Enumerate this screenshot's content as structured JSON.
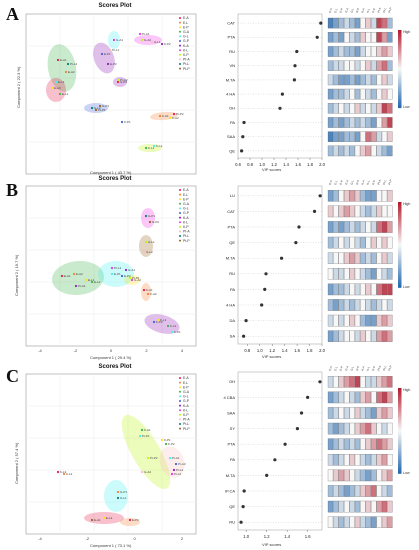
{
  "panels": [
    {
      "letter": "A",
      "scores": {
        "title": "Scores Plot",
        "xlabel": "Component 1 ( 43.7 %)",
        "ylabel": "Component 2 ( 22.3 %)",
        "legend": [
          "E-A",
          "E-L",
          "E-P",
          "G-A",
          "G-L",
          "G-P",
          "K-A",
          "K-L",
          "K-P",
          "Pt-A",
          "Pt-L",
          "Pt-P"
        ],
        "point_labels": [
          "E-A1",
          "E-A2",
          "E-A3",
          "E-L1",
          "E-L2",
          "E-P1",
          "E-P2",
          "G-A1",
          "G-A2",
          "G-L1",
          "G-L2",
          "G-P1",
          "G-P2",
          "K-A1",
          "K-A2",
          "K-L1",
          "K-L2",
          "K-P1",
          "K-P2",
          "Pt-A1",
          "Pt-A2",
          "Pt-L1",
          "Pt-L2",
          "Pt-P1",
          "Pt-P2"
        ]
      },
      "vip": {
        "xlabel": "VIP scores",
        "features": [
          "CAT",
          "PTA",
          "RU",
          "VN",
          "M.TA",
          "4 HA",
          "OH",
          "PA",
          "SAA",
          "QE"
        ],
        "values": [
          1.98,
          1.92,
          1.58,
          1.55,
          1.54,
          1.34,
          1.3,
          0.7,
          0.68,
          0.66
        ],
        "xticks": [
          "0.6",
          "0.8",
          "1.0",
          "1.2",
          "1.4",
          "1.6",
          "1.8",
          "2.0"
        ],
        "xlim": [
          0.6,
          2.0
        ]
      },
      "heatmap_columns": [
        "E-A",
        "E-L",
        "E-P",
        "G-A",
        "G-L",
        "G-P",
        "K-A",
        "K-L",
        "K-P",
        "Pt-A",
        "Pt-L",
        "Pt-P"
      ],
      "colorbar": {
        "high": "High",
        "low": "Low"
      }
    },
    {
      "letter": "B",
      "scores": {
        "title": "Scores Plot",
        "xlabel": "Component 1 ( 29.4 %)",
        "ylabel": "Component 2 ( 19.7 %)",
        "xticks": [
          "-4",
          "-2",
          "0",
          "2",
          "4"
        ],
        "legend": [
          "E-A",
          "E-L",
          "E-P",
          "G-A",
          "G-L",
          "G-P",
          "K-A",
          "K-L",
          "K-P",
          "Pt-A",
          "Pt-L",
          "Pt-P"
        ],
        "point_labels": [
          "E-A1",
          "E-A2",
          "E-L1",
          "E-L2",
          "E-P1",
          "E-P2",
          "G-A1",
          "G-A2",
          "G-L1",
          "G-L2",
          "G-P1",
          "G-P2",
          "K-A1",
          "K-A2",
          "K-L1",
          "K-L2",
          "K-P1",
          "K-P2",
          "Pt-A1",
          "Pt-L1",
          "Pt-P1"
        ]
      },
      "vip": {
        "xlabel": "VIP scores",
        "features": [
          "LU",
          "CAT",
          "PTA",
          "QE",
          "M.TA",
          "RU",
          "PA",
          "4 HA",
          "DA",
          "SA"
        ],
        "values": [
          1.97,
          1.88,
          1.63,
          1.58,
          1.35,
          1.1,
          1.08,
          1.03,
          0.78,
          0.74
        ],
        "xticks": [
          "0.8",
          "1.0",
          "1.2",
          "1.4",
          "1.6",
          "1.8",
          "2.0"
        ],
        "xlim": [
          0.65,
          2.0
        ]
      },
      "heatmap_columns": [
        "E-A",
        "E-L",
        "E-P",
        "G-A",
        "G-L",
        "G-P",
        "K-A",
        "K-L",
        "K-P",
        "Pt-A",
        "Pt-L",
        "Pt-P"
      ],
      "colorbar": {
        "high": "High",
        "low": "Low"
      }
    },
    {
      "letter": "C",
      "scores": {
        "title": "Scores Plot",
        "xlabel": "Component 1 ( 73.1 %)",
        "ylabel": "Component 2 ( 57.4 %)",
        "xticks": [
          "-4",
          "-2",
          "0",
          "2"
        ],
        "legend": [
          "E-A",
          "E-L",
          "E-P",
          "G-A",
          "G-L",
          "G-P",
          "K-A",
          "K-L",
          "K-P",
          "Pt-A",
          "Pt-L",
          "Pt-P"
        ],
        "point_labels": [
          "K-L3",
          "K-L2",
          "K-P1",
          "K-P2",
          "Pt-A1",
          "Pt-A3",
          "Pt-L1",
          "Pt-L2",
          "Pt-P2",
          "G-A2",
          "G-L1",
          "E-A1",
          "E-P2",
          "G-P1",
          "E-L2",
          "K-A1",
          "Pt-P1"
        ]
      },
      "vip": {
        "xlabel": "VIP scores",
        "features": [
          "OH",
          "4 CBA",
          "SAA",
          "SY",
          "PTA",
          "PA",
          "M.TA",
          "IP.CA",
          "QE",
          "RU"
        ],
        "values": [
          1.72,
          1.6,
          1.54,
          1.5,
          1.38,
          1.28,
          1.2,
          0.98,
          0.97,
          0.95
        ],
        "xticks": [
          "1.0",
          "1.2",
          "1.4",
          "1.6"
        ],
        "xlim": [
          0.92,
          1.74
        ]
      },
      "heatmap_columns": [
        "E-A",
        "E-L",
        "E-P",
        "G-A",
        "G-L",
        "G-P",
        "K-A",
        "K-L",
        "K-P",
        "Pt-A",
        "Pt-L",
        "Pt-P"
      ],
      "colorbar": {
        "high": "High",
        "low": "Low"
      }
    }
  ],
  "colors": {
    "high": "#b2182b",
    "mid": "#f7f7f7",
    "low": "#2166ac",
    "dot": "#333333"
  },
  "heatmap_values": [
    [
      [
        0.1,
        0.2,
        0.3,
        0.4,
        0.3,
        0.2,
        0.5,
        0.6,
        0.4,
        0.9,
        0.8,
        0.3
      ],
      [
        0.2,
        0.3,
        0.2,
        0.5,
        0.4,
        0.3,
        0.6,
        0.5,
        0.5,
        0.9,
        0.7,
        0.2
      ],
      [
        0.2,
        0.3,
        0.4,
        0.3,
        0.3,
        0.2,
        0.4,
        0.5,
        0.5,
        0.6,
        0.7,
        0.6
      ],
      [
        0.3,
        0.4,
        0.4,
        0.5,
        0.5,
        0.4,
        0.5,
        0.6,
        0.4,
        0.7,
        0.8,
        0.3
      ],
      [
        0.4,
        0.3,
        0.2,
        0.2,
        0.3,
        0.2,
        0.3,
        0.4,
        0.3,
        0.5,
        0.6,
        0.4
      ],
      [
        0.2,
        0.3,
        0.3,
        0.4,
        0.5,
        0.3,
        0.5,
        0.4,
        0.3,
        0.5,
        0.6,
        0.5
      ],
      [
        0.3,
        0.4,
        0.5,
        0.4,
        0.5,
        0.6,
        0.4,
        0.5,
        0.4,
        0.6,
        0.9,
        0.8
      ],
      [
        0.2,
        0.3,
        0.2,
        0.3,
        0.4,
        0.3,
        0.4,
        0.3,
        0.2,
        0.5,
        0.7,
        0.9
      ],
      [
        0.1,
        0.2,
        0.2,
        0.3,
        0.3,
        0.2,
        0.5,
        0.8,
        0.7,
        0.4,
        0.5,
        0.6
      ],
      [
        0.3,
        0.4,
        0.3,
        0.4,
        0.3,
        0.5,
        0.6,
        0.7,
        0.5,
        0.4,
        0.3,
        0.2
      ]
    ],
    [
      [
        0.2,
        0.3,
        0.5,
        0.6,
        0.7,
        0.6,
        0.3,
        0.2,
        0.2,
        0.5,
        0.5,
        0.6
      ],
      [
        0.6,
        0.5,
        0.6,
        0.7,
        0.6,
        0.5,
        0.4,
        0.3,
        0.4,
        0.6,
        0.5,
        0.5
      ],
      [
        0.2,
        0.3,
        0.2,
        0.3,
        0.4,
        0.3,
        0.4,
        0.5,
        0.4,
        0.8,
        0.9,
        0.7
      ],
      [
        0.3,
        0.4,
        0.5,
        0.4,
        0.5,
        0.4,
        0.3,
        0.5,
        0.6,
        0.5,
        0.6,
        0.5
      ],
      [
        0.4,
        0.5,
        0.5,
        0.6,
        0.7,
        0.6,
        0.3,
        0.4,
        0.3,
        0.5,
        0.6,
        0.4
      ],
      [
        0.5,
        0.4,
        0.4,
        0.5,
        0.6,
        0.5,
        0.4,
        0.3,
        0.2,
        0.5,
        0.4,
        0.3
      ],
      [
        0.2,
        0.3,
        0.3,
        0.4,
        0.5,
        0.4,
        0.5,
        0.6,
        0.5,
        0.8,
        0.9,
        0.9
      ],
      [
        0.3,
        0.2,
        0.3,
        0.4,
        0.3,
        0.4,
        0.5,
        0.4,
        0.3,
        0.4,
        0.5,
        0.4
      ],
      [
        0.4,
        0.5,
        0.4,
        0.5,
        0.6,
        0.5,
        0.3,
        0.2,
        0.2,
        0.6,
        0.7,
        0.6
      ],
      [
        0.2,
        0.3,
        0.4,
        0.5,
        0.5,
        0.4,
        0.6,
        0.5,
        0.4,
        0.7,
        0.8,
        0.7
      ]
    ],
    [
      [
        0.4,
        0.5,
        0.6,
        0.7,
        0.8,
        0.9,
        0.5,
        0.4,
        0.4,
        0.6,
        0.7,
        0.8
      ],
      [
        0.2,
        0.3,
        0.4,
        0.5,
        0.4,
        0.3,
        0.6,
        0.7,
        0.5,
        0.8,
        0.9,
        0.7
      ],
      [
        0.3,
        0.4,
        0.5,
        0.4,
        0.5,
        0.6,
        0.4,
        0.3,
        0.2,
        0.6,
        0.7,
        0.6
      ],
      [
        0.3,
        0.2,
        0.3,
        0.4,
        0.5,
        0.6,
        0.7,
        0.8,
        0.6,
        0.5,
        0.4,
        0.5
      ],
      [
        0.2,
        0.3,
        0.4,
        0.3,
        0.4,
        0.3,
        0.5,
        0.6,
        0.7,
        0.8,
        0.7,
        0.6
      ],
      [
        0.4,
        0.3,
        0.4,
        0.5,
        0.6,
        0.5,
        0.4,
        0.3,
        0.4,
        0.6,
        0.7,
        0.5
      ],
      [
        0.5,
        0.6,
        0.7,
        0.6,
        0.5,
        0.4,
        0.3,
        0.2,
        0.3,
        0.5,
        0.6,
        0.7
      ],
      [
        0.3,
        0.4,
        0.3,
        0.2,
        0.3,
        0.4,
        0.6,
        0.7,
        0.8,
        0.5,
        0.4,
        0.3
      ],
      [
        0.2,
        0.3,
        0.4,
        0.5,
        0.4,
        0.3,
        0.5,
        0.6,
        0.5,
        0.7,
        0.8,
        0.6
      ],
      [
        0.5,
        0.4,
        0.3,
        0.4,
        0.5,
        0.6,
        0.4,
        0.3,
        0.2,
        0.5,
        0.6,
        0.7
      ]
    ]
  ]
}
